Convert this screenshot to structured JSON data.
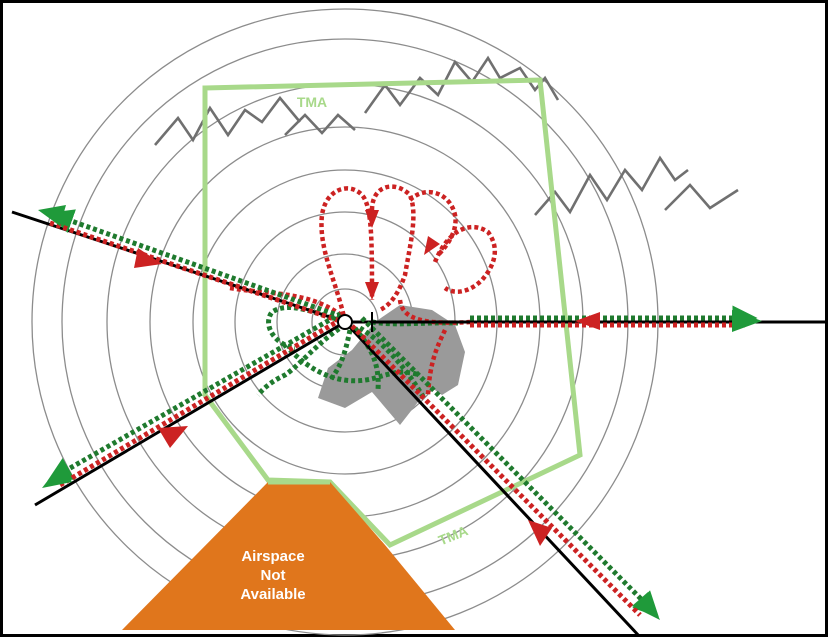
{
  "labels": {
    "tma_top": "TMA",
    "tma_bottom": "TMA",
    "airspace": [
      "Airspace",
      "Not",
      "Available"
    ]
  },
  "colors": {
    "rings": "#8c8c8c",
    "mountains": "#707070",
    "tma_boundary": "#a8d98a",
    "departure_route": "#1f7a2e",
    "arrival_route": "#cc2222",
    "airway": "#000000",
    "terrain_shadow": "#9a9a9a",
    "restricted_area": "#e0761c",
    "frame": "#000000"
  }
}
